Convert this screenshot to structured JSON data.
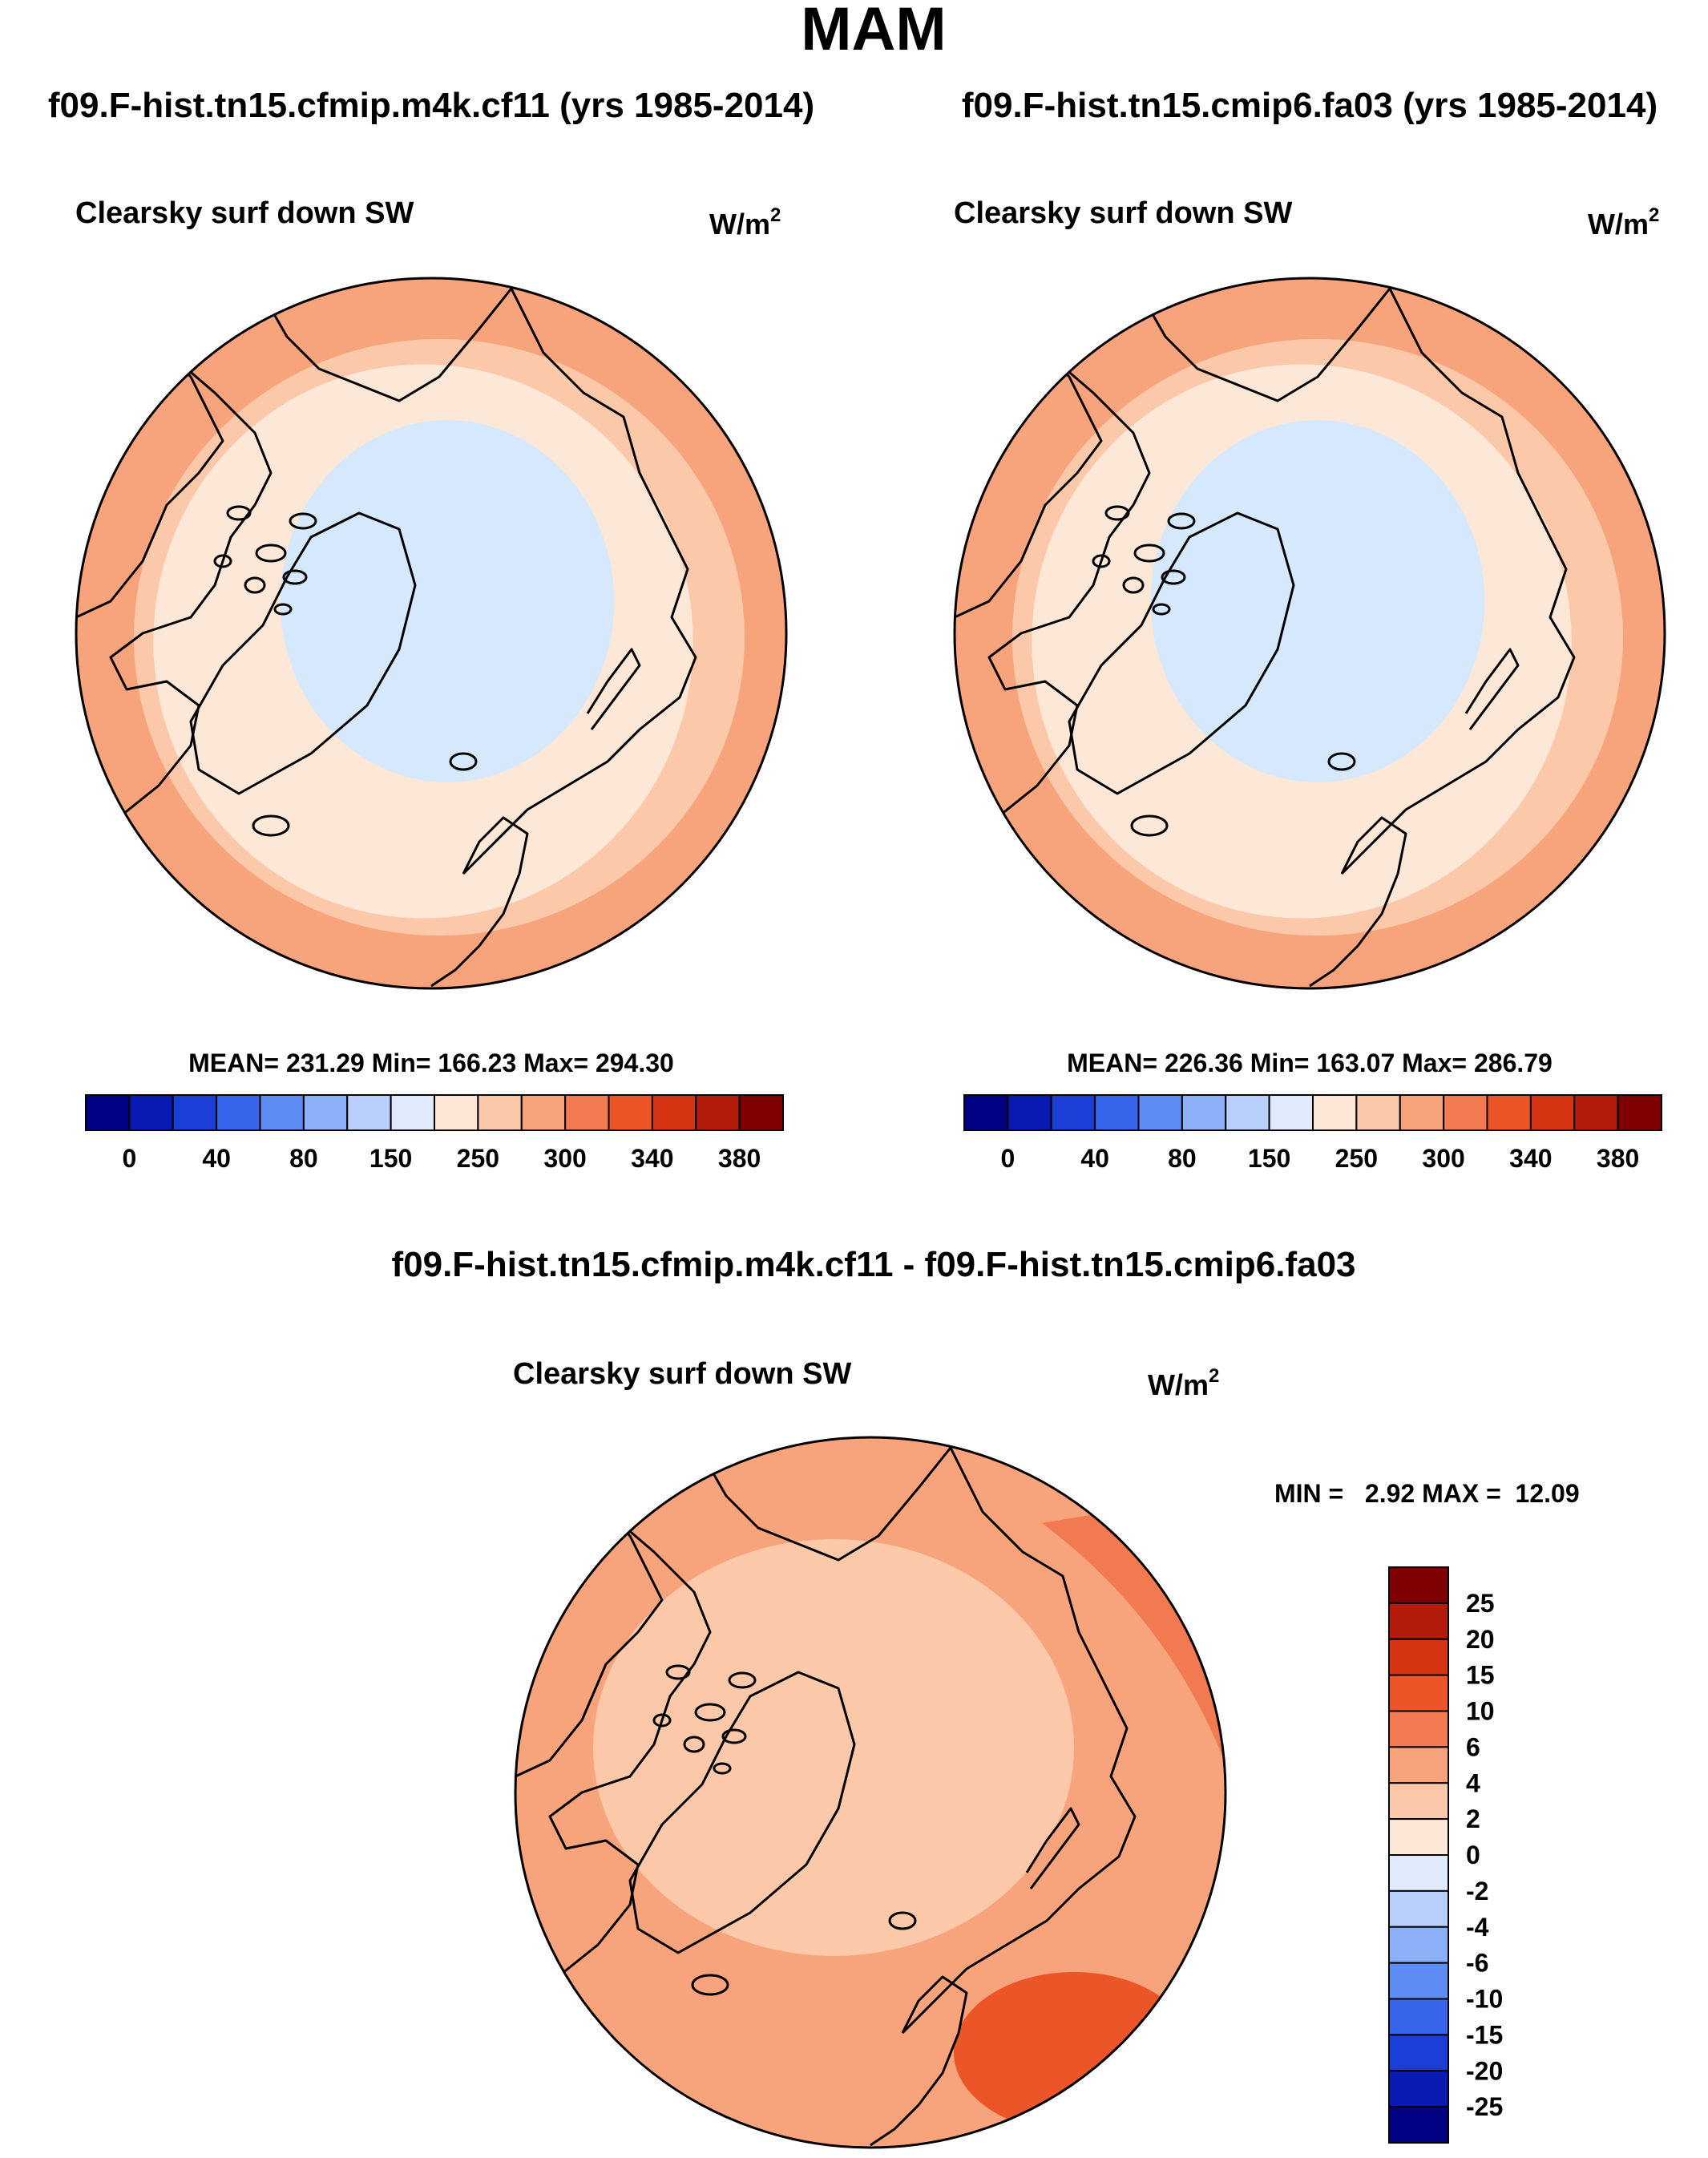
{
  "season_title": "MAM",
  "colors": {
    "blue_ocean": "#d6e8fb",
    "peach_light": "#fde8d8",
    "peach": "#fbc9aa",
    "salmon": "#f7a37c",
    "orange": "#f27a51",
    "orange_dark": "#ec5528",
    "outline": "#000000"
  },
  "chart_data": [
    {
      "type": "heatmap",
      "projection": "north-polar-stereographic",
      "case_title": "f09.F-hist.tn15.cfmip.m4k.cf11 (yrs 1985-2014)",
      "variable": "Clearsky surf down SW",
      "units": "W/m",
      "units_sup": "2",
      "stats": {
        "mean": 231.29,
        "min": 166.23,
        "max": 294.3
      },
      "stats_text": "MEAN= 231.29  Min= 166.23  Max= 294.30",
      "colorbar": {
        "orientation": "horizontal",
        "tick_labels": [
          "0",
          "40",
          "80",
          "150",
          "250",
          "300",
          "340",
          "380"
        ],
        "colors": [
          "#000083",
          "#0a1bb3",
          "#1a3ed6",
          "#3766ec",
          "#5d8cf4",
          "#8cb0f8",
          "#b8cffb",
          "#dfeafc",
          "#fde8d8",
          "#fbc9aa",
          "#f7a37c",
          "#f27a51",
          "#ec5528",
          "#d63513",
          "#b31c0a",
          "#7f0000"
        ]
      },
      "regions": [
        "Arctic Ocean: lowest flux (blue)",
        "Mid latitudes: higher flux (peach)",
        "Outer ring: highest flux (salmon)"
      ]
    },
    {
      "type": "heatmap",
      "projection": "north-polar-stereographic",
      "case_title": "f09.F-hist.tn15.cmip6.fa03 (yrs 1985-2014)",
      "variable": "Clearsky surf down SW",
      "units": "W/m",
      "units_sup": "2",
      "stats": {
        "mean": 226.36,
        "min": 163.07,
        "max": 286.79
      },
      "stats_text": "MEAN= 226.36  Min= 163.07  Max= 286.79",
      "colorbar": {
        "orientation": "horizontal",
        "tick_labels": [
          "0",
          "40",
          "80",
          "150",
          "250",
          "300",
          "340",
          "380"
        ],
        "colors": [
          "#000083",
          "#0a1bb3",
          "#1a3ed6",
          "#3766ec",
          "#5d8cf4",
          "#8cb0f8",
          "#b8cffb",
          "#dfeafc",
          "#fde8d8",
          "#fbc9aa",
          "#f7a37c",
          "#f27a51",
          "#ec5528",
          "#d63513",
          "#b31c0a",
          "#7f0000"
        ]
      }
    },
    {
      "type": "heatmap",
      "projection": "north-polar-stereographic",
      "case_title": "f09.F-hist.tn15.cfmip.m4k.cf11 - f09.F-hist.tn15.cmip6.fa03",
      "variable": "Clearsky surf down SW",
      "units": "W/m",
      "units_sup": "2",
      "stats": {
        "min": 2.92,
        "max": 12.09
      },
      "stats_text": "MIN =   2.92 MAX =  12.09",
      "colorbar": {
        "orientation": "vertical",
        "tick_labels": [
          "25",
          "20",
          "15",
          "10",
          "6",
          "4",
          "2",
          "0",
          "-2",
          "-4",
          "-6",
          "-10",
          "-15",
          "-20",
          "-25"
        ],
        "colors": [
          "#7f0000",
          "#b31c0a",
          "#d63513",
          "#ec5528",
          "#f27a51",
          "#f7a37c",
          "#fbc9aa",
          "#fde8d8",
          "#dfeafc",
          "#b8cffb",
          "#8cb0f8",
          "#5d8cf4",
          "#3766ec",
          "#1a3ed6",
          "#0a1bb3",
          "#000083"
        ]
      }
    }
  ]
}
